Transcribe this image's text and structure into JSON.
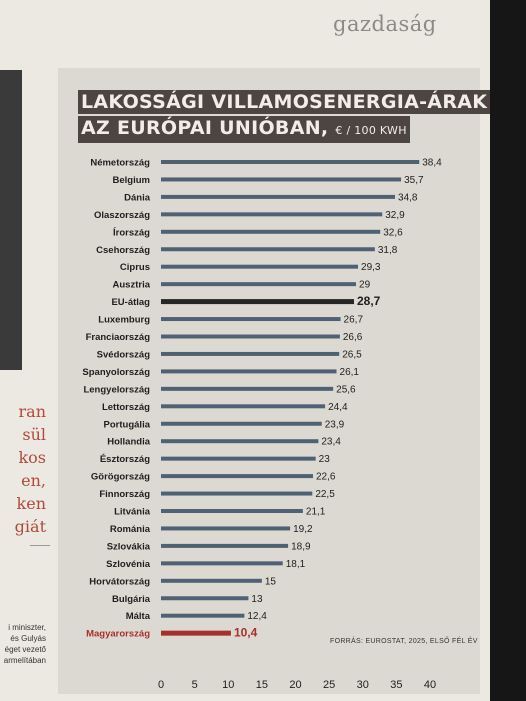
{
  "header": {
    "section": "gazdaság"
  },
  "left_column": {
    "lines": [
      "ran",
      "sül",
      "kos",
      "en,",
      "ken",
      "giát"
    ],
    "small_lines": [
      "i miniszter,",
      "és Gulyás",
      "éget vezető",
      "armelítában"
    ]
  },
  "chart_data": {
    "type": "bar",
    "orientation": "horizontal",
    "title_line1": "LAKOSSÁGI VILLAMOSENERGIA-ÁRAK",
    "title_line2": "AZ EURÓPAI UNIÓBAN,",
    "unit": "€ / 100 KWH",
    "source": "FORRÁS: EUROSTAT, 2025, ELSŐ FÉL ÉV",
    "categories": [
      "Németország",
      "Belgium",
      "Dánia",
      "Olaszország",
      "Írország",
      "Csehország",
      "Ciprus",
      "Ausztria",
      "EU-átlag",
      "Luxemburg",
      "Franciaország",
      "Svédország",
      "Spanyolország",
      "Lengyelország",
      "Lettország",
      "Portugália",
      "Hollandia",
      "Észtország",
      "Görögország",
      "Finnország",
      "Litvánia",
      "Románia",
      "Szlovákia",
      "Szlovénia",
      "Horvátország",
      "Bulgária",
      "Málta",
      "Magyarország"
    ],
    "values": [
      38.4,
      35.7,
      34.8,
      32.9,
      32.6,
      31.8,
      29.3,
      29,
      28.7,
      26.7,
      26.6,
      26.5,
      26.1,
      25.6,
      24.4,
      23.9,
      23.4,
      23,
      22.6,
      22.5,
      21.1,
      19.2,
      18.9,
      18.1,
      15,
      13,
      12.4,
      10.4
    ],
    "value_labels": [
      "38,4",
      "35,7",
      "34,8",
      "32,9",
      "32,6",
      "31,8",
      "29,3",
      "29",
      "28,7",
      "26,7",
      "26,6",
      "26,5",
      "26,1",
      "25,6",
      "24,4",
      "23,9",
      "23,4",
      "23",
      "22,6",
      "22,5",
      "21,1",
      "19,2",
      "18,9",
      "18,1",
      "15",
      "13",
      "12,4",
      "10,4"
    ],
    "highlight": {
      "EU-átlag": "#262626",
      "Magyarország": "#a6302b"
    },
    "bar_color": "#4f6275",
    "xlim": [
      0,
      40
    ],
    "xticks": [
      "0",
      "5",
      "10",
      "15",
      "20",
      "25",
      "30",
      "35",
      "40"
    ]
  }
}
